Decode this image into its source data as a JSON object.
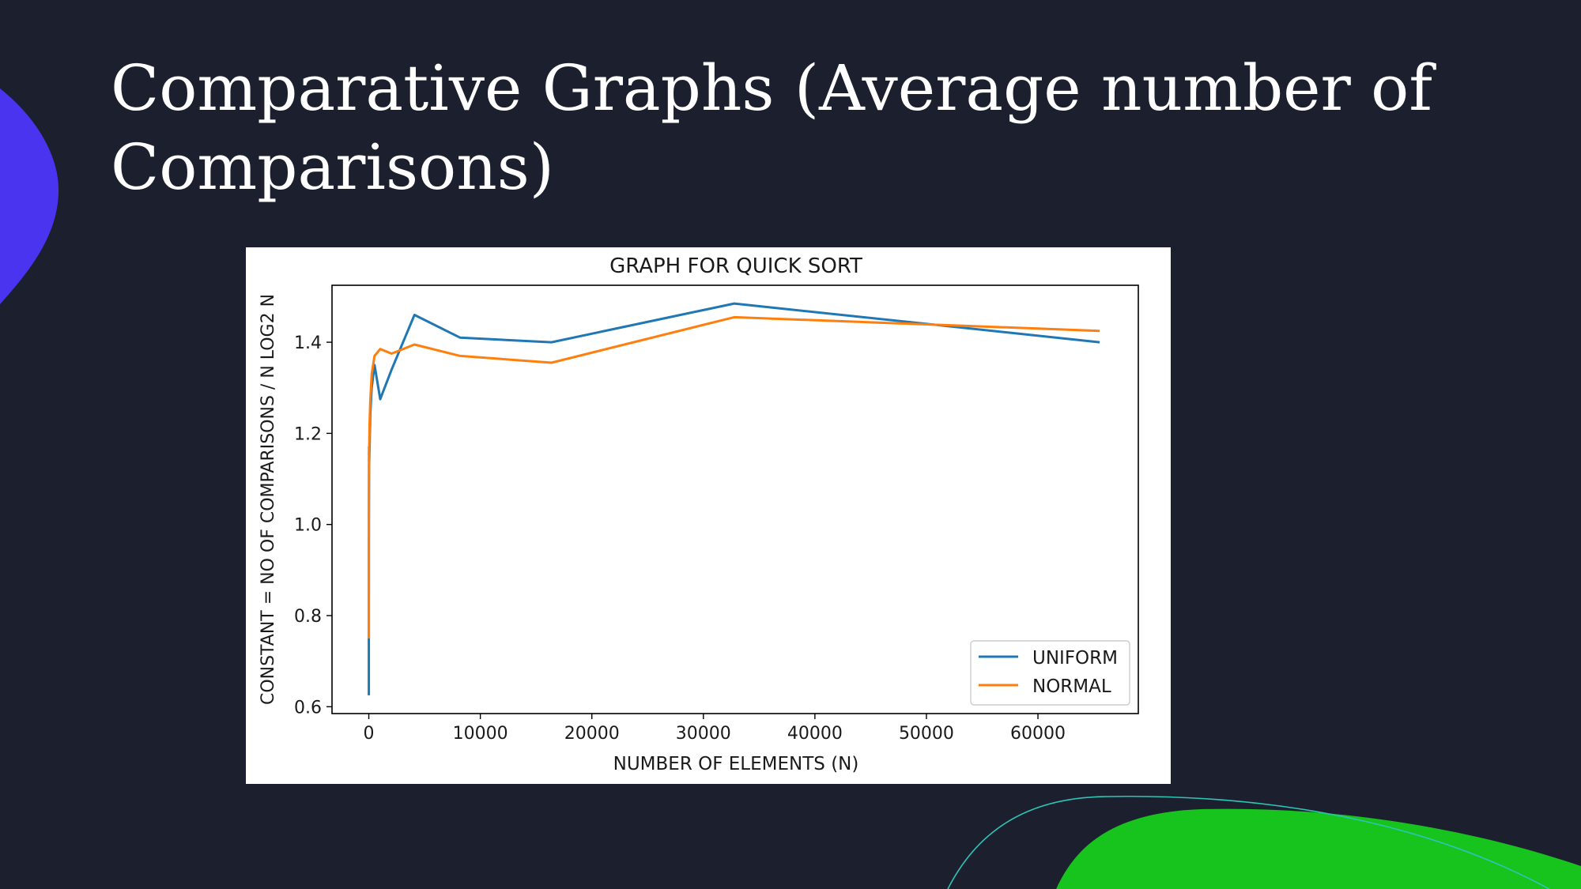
{
  "slide": {
    "title": "Comparative Graphs (Average number of Comparisons)"
  },
  "colors": {
    "background": "#1c202e",
    "blob_purple": "#4a34f0",
    "blob_green": "#16c41d",
    "accent_line": "#2ec4b6"
  },
  "chart_data": {
    "type": "line",
    "title": "GRAPH FOR QUICK SORT",
    "xlabel": "NUMBER OF ELEMENTS (N)",
    "ylabel": "CONSTANT = NO OF COMPARISONS / N LOG2 N",
    "xlim": [
      -3300,
      69000
    ],
    "ylim": [
      0.585,
      1.525
    ],
    "xticks": [
      0,
      10000,
      20000,
      30000,
      40000,
      50000,
      60000
    ],
    "yticks": [
      0.6,
      0.8,
      1.0,
      1.2,
      1.4
    ],
    "ytick_labels": [
      "0.6",
      "0.8",
      "1.0",
      "1.2",
      "1.4"
    ],
    "legend_position": "bottom-right",
    "grid": false,
    "series": [
      {
        "name": "UNIFORM",
        "color": "#1f77b4",
        "x": [
          2,
          4,
          8,
          16,
          32,
          64,
          128,
          256,
          512,
          1024,
          2048,
          4096,
          8192,
          16384,
          32768,
          65536
        ],
        "y": [
          0.625,
          0.75,
          1.0,
          1.06,
          1.13,
          1.17,
          1.24,
          1.3,
          1.35,
          1.275,
          1.34,
          1.46,
          1.41,
          1.4,
          1.485,
          1.4
        ]
      },
      {
        "name": "NORMAL",
        "color": "#ff7f0e",
        "x": [
          2,
          4,
          8,
          16,
          32,
          64,
          128,
          256,
          512,
          1024,
          2048,
          4096,
          8192,
          16384,
          32768,
          65536
        ],
        "y": [
          0.75,
          1.0,
          1.17,
          1.1,
          1.16,
          1.22,
          1.27,
          1.33,
          1.37,
          1.385,
          1.375,
          1.395,
          1.37,
          1.355,
          1.455,
          1.425
        ]
      }
    ]
  }
}
